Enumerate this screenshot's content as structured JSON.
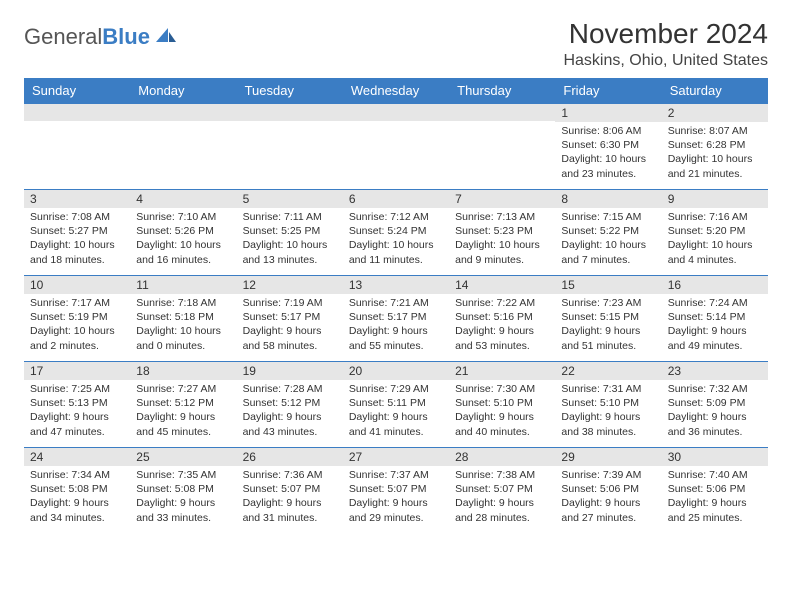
{
  "logo": {
    "text_gray": "General",
    "text_blue": "Blue"
  },
  "title": "November 2024",
  "location": "Haskins, Ohio, United States",
  "colors": {
    "header_bg": "#3b7dc4",
    "daynum_bg": "#e6e6e6",
    "border": "#3b7dc4"
  },
  "days_of_week": [
    "Sunday",
    "Monday",
    "Tuesday",
    "Wednesday",
    "Thursday",
    "Friday",
    "Saturday"
  ],
  "weeks": [
    [
      {
        "n": "",
        "sunrise": "",
        "sunset": "",
        "daylight": ""
      },
      {
        "n": "",
        "sunrise": "",
        "sunset": "",
        "daylight": ""
      },
      {
        "n": "",
        "sunrise": "",
        "sunset": "",
        "daylight": ""
      },
      {
        "n": "",
        "sunrise": "",
        "sunset": "",
        "daylight": ""
      },
      {
        "n": "",
        "sunrise": "",
        "sunset": "",
        "daylight": ""
      },
      {
        "n": "1",
        "sunrise": "Sunrise: 8:06 AM",
        "sunset": "Sunset: 6:30 PM",
        "daylight": "Daylight: 10 hours and 23 minutes."
      },
      {
        "n": "2",
        "sunrise": "Sunrise: 8:07 AM",
        "sunset": "Sunset: 6:28 PM",
        "daylight": "Daylight: 10 hours and 21 minutes."
      }
    ],
    [
      {
        "n": "3",
        "sunrise": "Sunrise: 7:08 AM",
        "sunset": "Sunset: 5:27 PM",
        "daylight": "Daylight: 10 hours and 18 minutes."
      },
      {
        "n": "4",
        "sunrise": "Sunrise: 7:10 AM",
        "sunset": "Sunset: 5:26 PM",
        "daylight": "Daylight: 10 hours and 16 minutes."
      },
      {
        "n": "5",
        "sunrise": "Sunrise: 7:11 AM",
        "sunset": "Sunset: 5:25 PM",
        "daylight": "Daylight: 10 hours and 13 minutes."
      },
      {
        "n": "6",
        "sunrise": "Sunrise: 7:12 AM",
        "sunset": "Sunset: 5:24 PM",
        "daylight": "Daylight: 10 hours and 11 minutes."
      },
      {
        "n": "7",
        "sunrise": "Sunrise: 7:13 AM",
        "sunset": "Sunset: 5:23 PM",
        "daylight": "Daylight: 10 hours and 9 minutes."
      },
      {
        "n": "8",
        "sunrise": "Sunrise: 7:15 AM",
        "sunset": "Sunset: 5:22 PM",
        "daylight": "Daylight: 10 hours and 7 minutes."
      },
      {
        "n": "9",
        "sunrise": "Sunrise: 7:16 AM",
        "sunset": "Sunset: 5:20 PM",
        "daylight": "Daylight: 10 hours and 4 minutes."
      }
    ],
    [
      {
        "n": "10",
        "sunrise": "Sunrise: 7:17 AM",
        "sunset": "Sunset: 5:19 PM",
        "daylight": "Daylight: 10 hours and 2 minutes."
      },
      {
        "n": "11",
        "sunrise": "Sunrise: 7:18 AM",
        "sunset": "Sunset: 5:18 PM",
        "daylight": "Daylight: 10 hours and 0 minutes."
      },
      {
        "n": "12",
        "sunrise": "Sunrise: 7:19 AM",
        "sunset": "Sunset: 5:17 PM",
        "daylight": "Daylight: 9 hours and 58 minutes."
      },
      {
        "n": "13",
        "sunrise": "Sunrise: 7:21 AM",
        "sunset": "Sunset: 5:17 PM",
        "daylight": "Daylight: 9 hours and 55 minutes."
      },
      {
        "n": "14",
        "sunrise": "Sunrise: 7:22 AM",
        "sunset": "Sunset: 5:16 PM",
        "daylight": "Daylight: 9 hours and 53 minutes."
      },
      {
        "n": "15",
        "sunrise": "Sunrise: 7:23 AM",
        "sunset": "Sunset: 5:15 PM",
        "daylight": "Daylight: 9 hours and 51 minutes."
      },
      {
        "n": "16",
        "sunrise": "Sunrise: 7:24 AM",
        "sunset": "Sunset: 5:14 PM",
        "daylight": "Daylight: 9 hours and 49 minutes."
      }
    ],
    [
      {
        "n": "17",
        "sunrise": "Sunrise: 7:25 AM",
        "sunset": "Sunset: 5:13 PM",
        "daylight": "Daylight: 9 hours and 47 minutes."
      },
      {
        "n": "18",
        "sunrise": "Sunrise: 7:27 AM",
        "sunset": "Sunset: 5:12 PM",
        "daylight": "Daylight: 9 hours and 45 minutes."
      },
      {
        "n": "19",
        "sunrise": "Sunrise: 7:28 AM",
        "sunset": "Sunset: 5:12 PM",
        "daylight": "Daylight: 9 hours and 43 minutes."
      },
      {
        "n": "20",
        "sunrise": "Sunrise: 7:29 AM",
        "sunset": "Sunset: 5:11 PM",
        "daylight": "Daylight: 9 hours and 41 minutes."
      },
      {
        "n": "21",
        "sunrise": "Sunrise: 7:30 AM",
        "sunset": "Sunset: 5:10 PM",
        "daylight": "Daylight: 9 hours and 40 minutes."
      },
      {
        "n": "22",
        "sunrise": "Sunrise: 7:31 AM",
        "sunset": "Sunset: 5:10 PM",
        "daylight": "Daylight: 9 hours and 38 minutes."
      },
      {
        "n": "23",
        "sunrise": "Sunrise: 7:32 AM",
        "sunset": "Sunset: 5:09 PM",
        "daylight": "Daylight: 9 hours and 36 minutes."
      }
    ],
    [
      {
        "n": "24",
        "sunrise": "Sunrise: 7:34 AM",
        "sunset": "Sunset: 5:08 PM",
        "daylight": "Daylight: 9 hours and 34 minutes."
      },
      {
        "n": "25",
        "sunrise": "Sunrise: 7:35 AM",
        "sunset": "Sunset: 5:08 PM",
        "daylight": "Daylight: 9 hours and 33 minutes."
      },
      {
        "n": "26",
        "sunrise": "Sunrise: 7:36 AM",
        "sunset": "Sunset: 5:07 PM",
        "daylight": "Daylight: 9 hours and 31 minutes."
      },
      {
        "n": "27",
        "sunrise": "Sunrise: 7:37 AM",
        "sunset": "Sunset: 5:07 PM",
        "daylight": "Daylight: 9 hours and 29 minutes."
      },
      {
        "n": "28",
        "sunrise": "Sunrise: 7:38 AM",
        "sunset": "Sunset: 5:07 PM",
        "daylight": "Daylight: 9 hours and 28 minutes."
      },
      {
        "n": "29",
        "sunrise": "Sunrise: 7:39 AM",
        "sunset": "Sunset: 5:06 PM",
        "daylight": "Daylight: 9 hours and 27 minutes."
      },
      {
        "n": "30",
        "sunrise": "Sunrise: 7:40 AM",
        "sunset": "Sunset: 5:06 PM",
        "daylight": "Daylight: 9 hours and 25 minutes."
      }
    ]
  ]
}
